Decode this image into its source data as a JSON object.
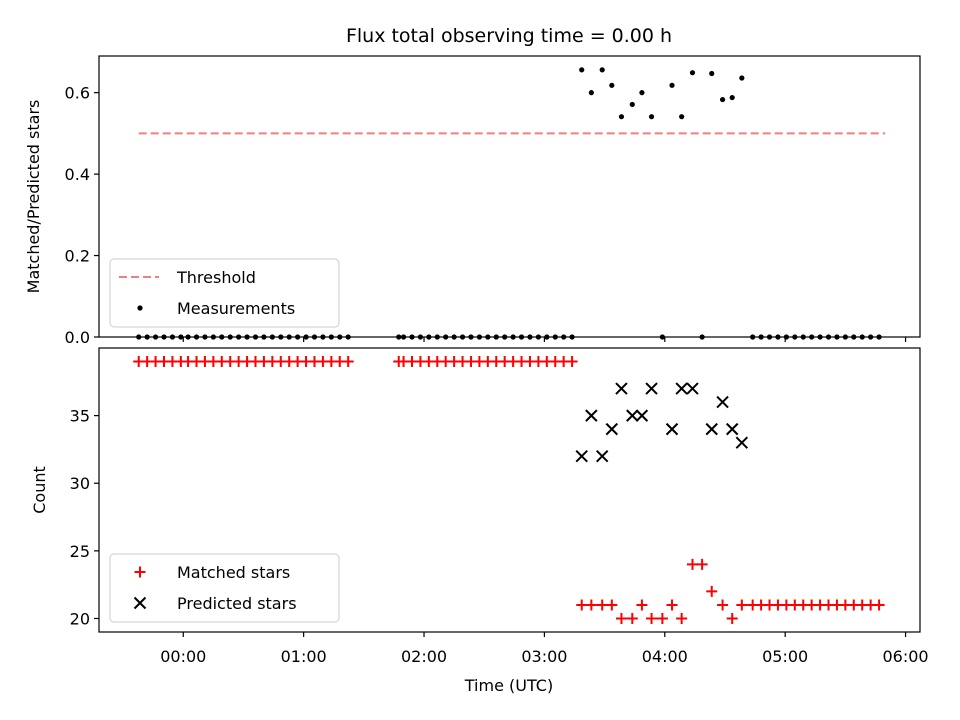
{
  "chart_data": {
    "title": "Flux total observing time = 0.00 h",
    "xlabel": "Time (UTC)",
    "x_unit": "hours UTC (hh:mm)",
    "x_ticks": [
      {
        "value": 0,
        "label": "00:00"
      },
      {
        "value": 1,
        "label": "01:00"
      },
      {
        "value": 2,
        "label": "02:00"
      },
      {
        "value": 3,
        "label": "03:00"
      },
      {
        "value": 4,
        "label": "04:00"
      },
      {
        "value": 5,
        "label": "05:00"
      },
      {
        "value": 6,
        "label": "06:00"
      }
    ],
    "xlim": [
      -0.7,
      6.12
    ],
    "panels": [
      {
        "type": "scatter",
        "ylabel": "Matched/Predicted stars",
        "ylim": [
          0,
          0.69
        ],
        "y_ticks": [
          {
            "value": 0,
            "label": "0.0"
          },
          {
            "value": 0.2,
            "label": "0.2"
          },
          {
            "value": 0.4,
            "label": "0.4"
          },
          {
            "value": 0.6,
            "label": "0.6"
          }
        ],
        "legend_position": "lower-left",
        "threshold": {
          "name": "Threshold",
          "value": 0.5,
          "x_range": [
            -0.37,
            5.83
          ],
          "color": "#f07f7f",
          "style": "dashed"
        },
        "series": [
          {
            "name": "Measurements",
            "marker": "dot",
            "color": "#000000",
            "points": [
              [
                -0.37,
                0
              ],
              [
                -0.3,
                0
              ],
              [
                -0.23,
                0
              ],
              [
                -0.16,
                0
              ],
              [
                -0.09,
                0
              ],
              [
                -0.02,
                0
              ],
              [
                0.04,
                0
              ],
              [
                0.11,
                0
              ],
              [
                0.18,
                0
              ],
              [
                0.25,
                0
              ],
              [
                0.32,
                0
              ],
              [
                0.39,
                0
              ],
              [
                0.46,
                0
              ],
              [
                0.53,
                0
              ],
              [
                0.6,
                0
              ],
              [
                0.67,
                0
              ],
              [
                0.74,
                0
              ],
              [
                0.81,
                0
              ],
              [
                0.88,
                0
              ],
              [
                0.95,
                0
              ],
              [
                1.02,
                0
              ],
              [
                1.09,
                0
              ],
              [
                1.16,
                0
              ],
              [
                1.23,
                0
              ],
              [
                1.3,
                0
              ],
              [
                1.37,
                0
              ],
              [
                1.79,
                0
              ],
              [
                1.83,
                0
              ],
              [
                1.9,
                0
              ],
              [
                1.97,
                0
              ],
              [
                2.04,
                0
              ],
              [
                2.11,
                0
              ],
              [
                2.18,
                0
              ],
              [
                2.25,
                0
              ],
              [
                2.32,
                0
              ],
              [
                2.39,
                0
              ],
              [
                2.46,
                0
              ],
              [
                2.53,
                0
              ],
              [
                2.6,
                0
              ],
              [
                2.67,
                0
              ],
              [
                2.74,
                0
              ],
              [
                2.81,
                0
              ],
              [
                2.88,
                0
              ],
              [
                2.95,
                0
              ],
              [
                3.02,
                0
              ],
              [
                3.09,
                0
              ],
              [
                3.16,
                0
              ],
              [
                3.23,
                0
              ],
              [
                3.31,
                0.656
              ],
              [
                3.39,
                0.6
              ],
              [
                3.48,
                0.656
              ],
              [
                3.56,
                0.618
              ],
              [
                3.64,
                0.541
              ],
              [
                3.73,
                0.571
              ],
              [
                3.81,
                0.6
              ],
              [
                3.89,
                0.541
              ],
              [
                3.98,
                0.0
              ],
              [
                4.06,
                0.618
              ],
              [
                4.14,
                0.541
              ],
              [
                4.23,
                0.649
              ],
              [
                4.31,
                0.0
              ],
              [
                4.39,
                0.647
              ],
              [
                4.48,
                0.583
              ],
              [
                4.56,
                0.588
              ],
              [
                4.64,
                0.636
              ],
              [
                4.73,
                0
              ],
              [
                4.8,
                0
              ],
              [
                4.87,
                0
              ],
              [
                4.94,
                0
              ],
              [
                5.01,
                0
              ],
              [
                5.08,
                0
              ],
              [
                5.15,
                0
              ],
              [
                5.22,
                0
              ],
              [
                5.29,
                0
              ],
              [
                5.36,
                0
              ],
              [
                5.43,
                0
              ],
              [
                5.5,
                0
              ],
              [
                5.57,
                0
              ],
              [
                5.64,
                0
              ],
              [
                5.71,
                0
              ],
              [
                5.78,
                0
              ]
            ]
          }
        ]
      },
      {
        "type": "scatter",
        "ylabel": "Count",
        "ylim": [
          19.0,
          40.0
        ],
        "y_ticks": [
          {
            "value": 20,
            "label": "20"
          },
          {
            "value": 25,
            "label": "25"
          },
          {
            "value": 30,
            "label": "30"
          },
          {
            "value": 35,
            "label": "35"
          }
        ],
        "legend_position": "lower-left",
        "series": [
          {
            "name": "Matched stars",
            "marker": "plus",
            "color": "#ff0000",
            "points": [
              [
                -0.37,
                39
              ],
              [
                -0.3,
                39
              ],
              [
                -0.23,
                39
              ],
              [
                -0.16,
                39
              ],
              [
                -0.09,
                39
              ],
              [
                -0.02,
                39
              ],
              [
                0.04,
                39
              ],
              [
                0.11,
                39
              ],
              [
                0.18,
                39
              ],
              [
                0.25,
                39
              ],
              [
                0.32,
                39
              ],
              [
                0.39,
                39
              ],
              [
                0.46,
                39
              ],
              [
                0.53,
                39
              ],
              [
                0.6,
                39
              ],
              [
                0.67,
                39
              ],
              [
                0.74,
                39
              ],
              [
                0.81,
                39
              ],
              [
                0.88,
                39
              ],
              [
                0.95,
                39
              ],
              [
                1.02,
                39
              ],
              [
                1.09,
                39
              ],
              [
                1.16,
                39
              ],
              [
                1.23,
                39
              ],
              [
                1.3,
                39
              ],
              [
                1.37,
                39
              ],
              [
                1.79,
                39
              ],
              [
                1.83,
                39
              ],
              [
                1.9,
                39
              ],
              [
                1.97,
                39
              ],
              [
                2.04,
                39
              ],
              [
                2.11,
                39
              ],
              [
                2.18,
                39
              ],
              [
                2.25,
                39
              ],
              [
                2.32,
                39
              ],
              [
                2.39,
                39
              ],
              [
                2.46,
                39
              ],
              [
                2.53,
                39
              ],
              [
                2.6,
                39
              ],
              [
                2.67,
                39
              ],
              [
                2.74,
                39
              ],
              [
                2.81,
                39
              ],
              [
                2.88,
                39
              ],
              [
                2.95,
                39
              ],
              [
                3.02,
                39
              ],
              [
                3.09,
                39
              ],
              [
                3.16,
                39
              ],
              [
                3.23,
                39
              ],
              [
                3.31,
                21
              ],
              [
                3.39,
                21
              ],
              [
                3.48,
                21
              ],
              [
                3.56,
                21
              ],
              [
                3.64,
                20
              ],
              [
                3.73,
                20
              ],
              [
                3.81,
                21
              ],
              [
                3.89,
                20
              ],
              [
                3.98,
                20
              ],
              [
                4.06,
                21
              ],
              [
                4.14,
                20
              ],
              [
                4.23,
                24
              ],
              [
                4.31,
                24
              ],
              [
                4.39,
                22
              ],
              [
                4.48,
                21
              ],
              [
                4.56,
                20
              ],
              [
                4.64,
                21
              ],
              [
                4.73,
                21
              ],
              [
                4.8,
                21
              ],
              [
                4.87,
                21
              ],
              [
                4.94,
                21
              ],
              [
                5.01,
                21
              ],
              [
                5.08,
                21
              ],
              [
                5.15,
                21
              ],
              [
                5.22,
                21
              ],
              [
                5.29,
                21
              ],
              [
                5.36,
                21
              ],
              [
                5.43,
                21
              ],
              [
                5.5,
                21
              ],
              [
                5.57,
                21
              ],
              [
                5.64,
                21
              ],
              [
                5.71,
                21
              ],
              [
                5.78,
                21
              ]
            ]
          },
          {
            "name": "Predicted stars",
            "marker": "x",
            "color": "#000000",
            "points": [
              [
                3.31,
                32
              ],
              [
                3.39,
                35
              ],
              [
                3.48,
                32
              ],
              [
                3.56,
                34
              ],
              [
                3.64,
                37
              ],
              [
                3.73,
                35
              ],
              [
                3.81,
                35
              ],
              [
                3.89,
                37
              ],
              [
                4.06,
                34
              ],
              [
                4.14,
                37
              ],
              [
                4.23,
                37
              ],
              [
                4.39,
                34
              ],
              [
                4.48,
                36
              ],
              [
                4.56,
                34
              ],
              [
                4.64,
                33
              ]
            ]
          }
        ]
      }
    ]
  }
}
